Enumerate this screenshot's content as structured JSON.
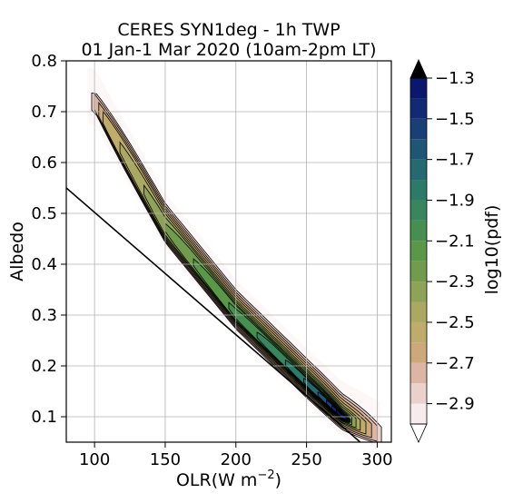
{
  "chart_data": {
    "type": "heatmap",
    "subtype": "filled-contour",
    "title": "CERES SYN1deg - 1h TWP",
    "subtitle": "01 Jan-1 Mar 2020 (10am-2pm LT)",
    "xlabel": "OLR(W m",
    "xlabel_sup": "−2",
    "xlabel_end": ")",
    "ylabel": "Albedo",
    "xlim": [
      80,
      310
    ],
    "ylim": [
      0.05,
      0.8
    ],
    "xticks": [
      100,
      150,
      200,
      250,
      300
    ],
    "xtick_labels": [
      "100",
      "150",
      "200",
      "250",
      "300"
    ],
    "yticks": [
      0.1,
      0.2,
      0.3,
      0.4,
      0.5,
      0.6,
      0.7,
      0.8
    ],
    "ytick_labels": [
      "0.1",
      "0.2",
      "0.3",
      "0.4",
      "0.5",
      "0.6",
      "0.7",
      "0.8"
    ],
    "grid": true,
    "colorbar": {
      "label": "log10(pdf)",
      "min": -3.0,
      "max": -1.3,
      "step": 0.1,
      "extend": "both",
      "ticks": [
        -1.3,
        -1.5,
        -1.7,
        -1.9,
        -2.1,
        -2.3,
        -2.5,
        -2.7,
        -2.9
      ],
      "tick_labels": [
        "−1.3",
        "−1.5",
        "−1.7",
        "−1.9",
        "−2.1",
        "−2.3",
        "−2.5",
        "−2.7",
        "−2.9"
      ]
    },
    "distribution": {
      "description_points": [
        {
          "olr": 100,
          "albedo": 0.715
        },
        {
          "olr": 150,
          "albedo": 0.47
        },
        {
          "olr": 200,
          "albedo": 0.3
        },
        {
          "olr": 250,
          "albedo": 0.165
        },
        {
          "olr": 275,
          "albedo": 0.1
        }
      ],
      "peak": {
        "olr": 275,
        "albedo": 0.095,
        "log10_pdf": -1.3
      }
    },
    "regression_line": {
      "x": [
        80,
        288
      ],
      "y": [
        0.55,
        0.05
      ]
    }
  }
}
